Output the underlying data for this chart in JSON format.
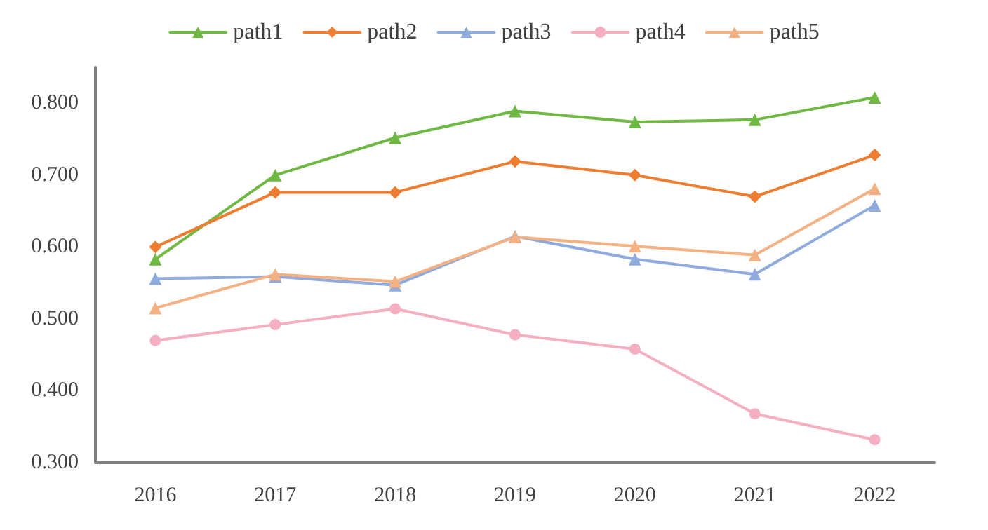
{
  "chart_data": {
    "type": "line",
    "categories": [
      "2016",
      "2017",
      "2018",
      "2019",
      "2020",
      "2021",
      "2022"
    ],
    "ylim": [
      0.3,
      0.85
    ],
    "yticks": [
      {
        "value": 0.3,
        "label": "0.300"
      },
      {
        "value": 0.4,
        "label": "0.400"
      },
      {
        "value": 0.5,
        "label": "0.500"
      },
      {
        "value": 0.6,
        "label": "0.600"
      },
      {
        "value": 0.7,
        "label": "0.700"
      },
      {
        "value": 0.8,
        "label": "0.800"
      }
    ],
    "grid": false,
    "legend": "top",
    "series": [
      {
        "name": "path1",
        "color": "#70b844",
        "marker": "triangle",
        "values": [
          0.583,
          0.7,
          0.752,
          0.789,
          0.774,
          0.777,
          0.808
        ]
      },
      {
        "name": "path2",
        "color": "#ed7d31",
        "marker": "diamond",
        "values": [
          0.6,
          0.676,
          0.676,
          0.719,
          0.7,
          0.67,
          0.728
        ]
      },
      {
        "name": "path3",
        "color": "#8faadc",
        "marker": "triangle",
        "values": [
          0.556,
          0.559,
          0.547,
          0.615,
          0.583,
          0.562,
          0.658
        ]
      },
      {
        "name": "path4",
        "color": "#f4b0c0",
        "marker": "circle",
        "values": [
          0.47,
          0.492,
          0.514,
          0.478,
          0.458,
          0.368,
          0.332
        ]
      },
      {
        "name": "path5",
        "color": "#f4b183",
        "marker": "triangle",
        "values": [
          0.515,
          0.562,
          0.552,
          0.614,
          0.601,
          0.589,
          0.681
        ]
      }
    ]
  }
}
